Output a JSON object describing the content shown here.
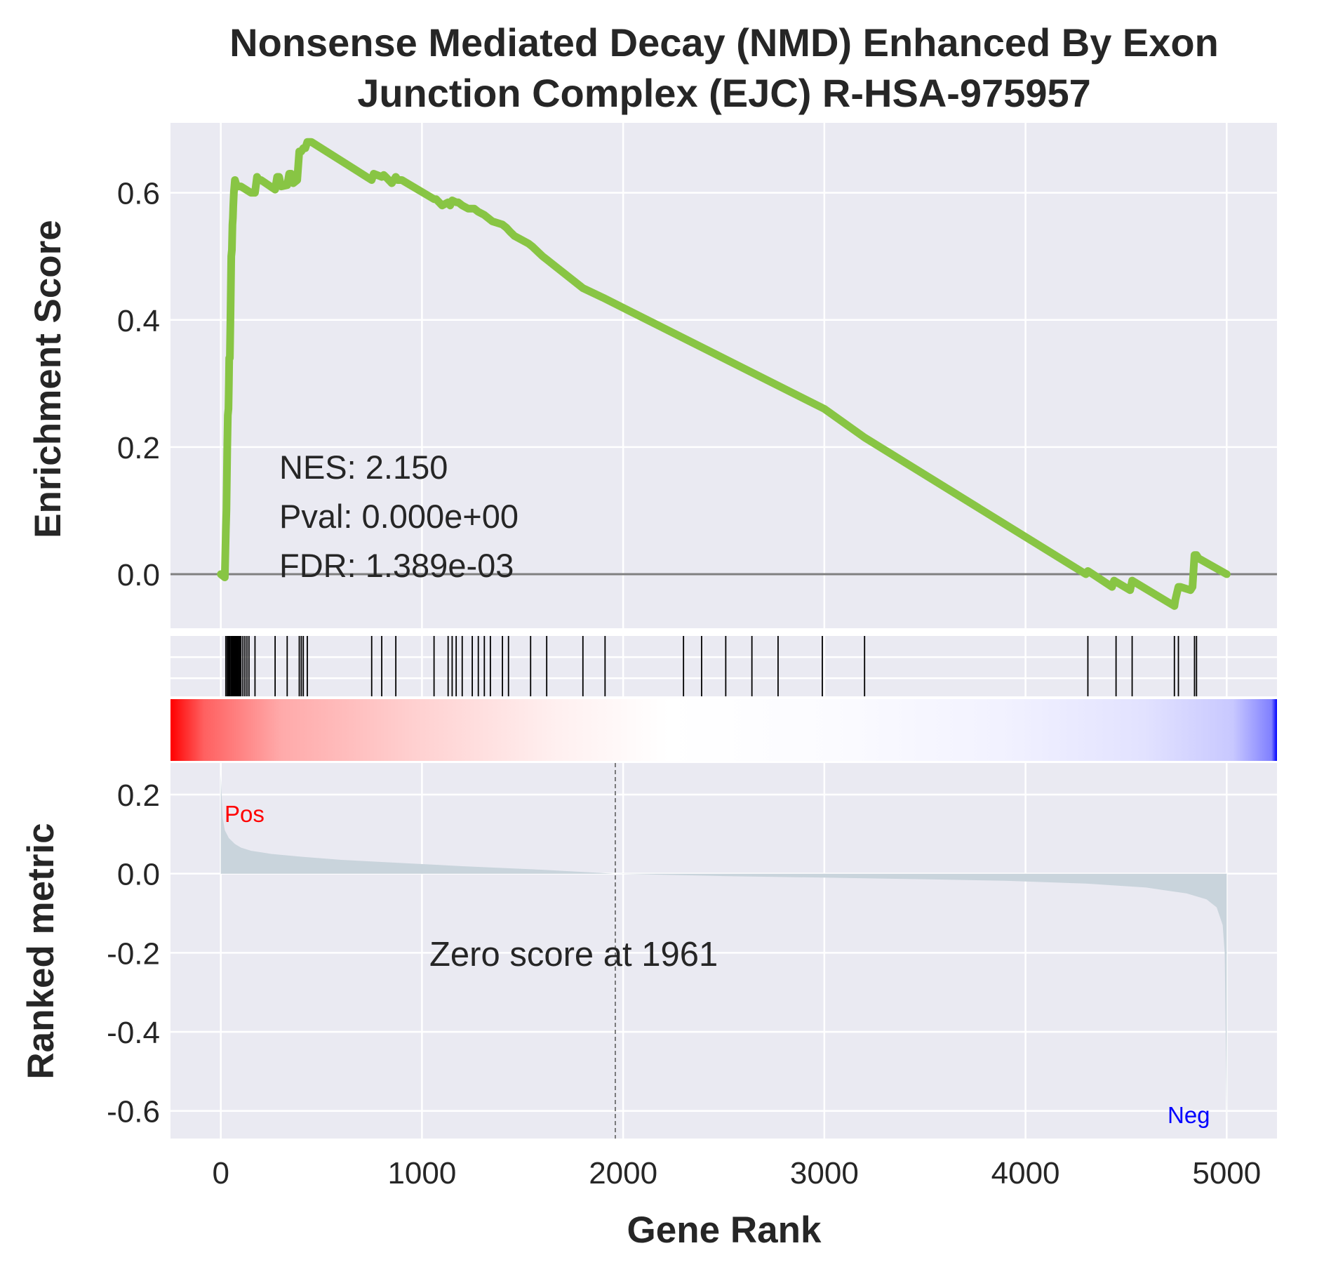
{
  "figure": {
    "title_line1": "Nonsense Mediated Decay (NMD) Enhanced By Exon",
    "title_line2": "Junction Complex (EJC) R-HSA-975957",
    "colors": {
      "panel_bg": "#eaeaf2",
      "grid": "#ffffff",
      "es_line": "#88c544",
      "hit_line": "#000000",
      "ranked_fill": "#c9d4dc",
      "zero_line": "#808080",
      "pos": "#ff0000",
      "neg": "#0000ff"
    }
  },
  "chart_data": [
    {
      "type": "line",
      "name": "enrichment-score",
      "ylabel": "Enrichment Score",
      "ylim": [
        -0.085,
        0.71
      ],
      "yticks": [
        0.0,
        0.2,
        0.4,
        0.6
      ],
      "ytick_labels": [
        "0.0",
        "0.2",
        "0.4",
        "0.6"
      ],
      "grid": true,
      "zero_line": 0.0,
      "x": [
        0,
        20,
        25,
        28,
        30,
        32,
        35,
        38,
        40,
        42,
        45,
        48,
        50,
        52,
        55,
        58,
        60,
        62,
        65,
        70,
        75,
        80,
        85,
        90,
        95,
        100,
        150,
        170,
        180,
        190,
        200,
        270,
        280,
        290,
        300,
        330,
        340,
        350,
        360,
        380,
        390,
        400,
        410,
        420,
        430,
        450,
        750,
        760,
        800,
        810,
        820,
        850,
        870,
        880,
        900,
        1060,
        1070,
        1100,
        1130,
        1140,
        1150,
        1170,
        1180,
        1200,
        1230,
        1260,
        1280,
        1310,
        1330,
        1350,
        1400,
        1420,
        1440,
        1460,
        1530,
        1550,
        1600,
        1620,
        1800,
        1900,
        3000,
        3200,
        4300,
        4310,
        4320,
        4430,
        4440,
        4450,
        4520,
        4530,
        4540,
        4740,
        4745,
        4760,
        4770,
        4820,
        4830,
        4840,
        4850,
        4860,
        5000
      ],
      "y": [
        0.0,
        -0.005,
        0.07,
        0.1,
        0.15,
        0.2,
        0.25,
        0.26,
        0.3,
        0.34,
        0.34,
        0.4,
        0.45,
        0.5,
        0.51,
        0.55,
        0.56,
        0.58,
        0.6,
        0.62,
        0.615,
        0.61,
        0.61,
        0.61,
        0.61,
        0.61,
        0.6,
        0.6,
        0.625,
        0.62,
        0.62,
        0.605,
        0.625,
        0.625,
        0.61,
        0.612,
        0.63,
        0.63,
        0.615,
        0.62,
        0.665,
        0.665,
        0.67,
        0.67,
        0.68,
        0.68,
        0.62,
        0.63,
        0.625,
        0.628,
        0.625,
        0.615,
        0.625,
        0.62,
        0.62,
        0.59,
        0.59,
        0.58,
        0.585,
        0.58,
        0.588,
        0.585,
        0.585,
        0.58,
        0.575,
        0.575,
        0.57,
        0.565,
        0.56,
        0.555,
        0.55,
        0.545,
        0.538,
        0.532,
        0.52,
        0.515,
        0.5,
        0.495,
        0.45,
        0.435,
        0.26,
        0.215,
        0.0,
        0.005,
        0.003,
        -0.02,
        -0.01,
        -0.012,
        -0.025,
        -0.01,
        -0.012,
        -0.05,
        -0.04,
        -0.02,
        -0.02,
        -0.025,
        -0.02,
        0.03,
        0.03,
        0.025,
        0.0
      ]
    },
    {
      "type": "scatter",
      "name": "gene-set-hits",
      "x": [
        25,
        32,
        38,
        44,
        50,
        55,
        60,
        65,
        70,
        75,
        80,
        85,
        90,
        95,
        100,
        110,
        120,
        130,
        140,
        170,
        270,
        330,
        390,
        400,
        410,
        430,
        750,
        800,
        870,
        1060,
        1130,
        1150,
        1170,
        1200,
        1250,
        1280,
        1310,
        1340,
        1400,
        1430,
        1540,
        1620,
        1800,
        1910,
        2300,
        2390,
        2510,
        2640,
        2770,
        2990,
        3200,
        4310,
        4450,
        4530,
        4740,
        4760,
        4840,
        4850
      ]
    },
    {
      "type": "area",
      "name": "ranked-metric",
      "xlabel": "Gene Rank",
      "ylabel": "Ranked metric",
      "xlim": [
        -250,
        5250
      ],
      "ylim": [
        -0.67,
        0.28
      ],
      "xticks": [
        0,
        1000,
        2000,
        3000,
        4000,
        5000
      ],
      "xtick_labels": [
        "0",
        "1000",
        "2000",
        "3000",
        "4000",
        "5000"
      ],
      "yticks": [
        0.2,
        0.0,
        -0.2,
        -0.4,
        -0.6
      ],
      "ytick_labels": [
        "0.2",
        "0.0",
        "-0.2",
        "-0.4",
        "-0.6"
      ],
      "x": [
        0,
        5,
        10,
        20,
        40,
        70,
        100,
        150,
        250,
        400,
        600,
        900,
        1200,
        1600,
        1961,
        2500,
        3000,
        3500,
        3900,
        4300,
        4600,
        4800,
        4900,
        4950,
        4980,
        4990,
        4995,
        5000
      ],
      "y": [
        0.25,
        0.19,
        0.14,
        0.11,
        0.09,
        0.075,
        0.066,
        0.058,
        0.05,
        0.043,
        0.035,
        0.027,
        0.019,
        0.01,
        0.0,
        -0.006,
        -0.01,
        -0.014,
        -0.018,
        -0.025,
        -0.035,
        -0.05,
        -0.065,
        -0.085,
        -0.13,
        -0.2,
        -0.4,
        -0.63
      ],
      "zero_score_rank": 1961,
      "zero_score_label": "Zero score at 1961",
      "pos_label": "Pos",
      "neg_label": "Neg"
    },
    {
      "type": "heatmap",
      "name": "rank-colorbar",
      "colormap": "bwr reversed (red to white to blue)"
    }
  ],
  "stats": {
    "nes": "NES: 2.150",
    "pval": "Pval: 0.000e+00",
    "fdr": "FDR: 1.389e-03"
  }
}
